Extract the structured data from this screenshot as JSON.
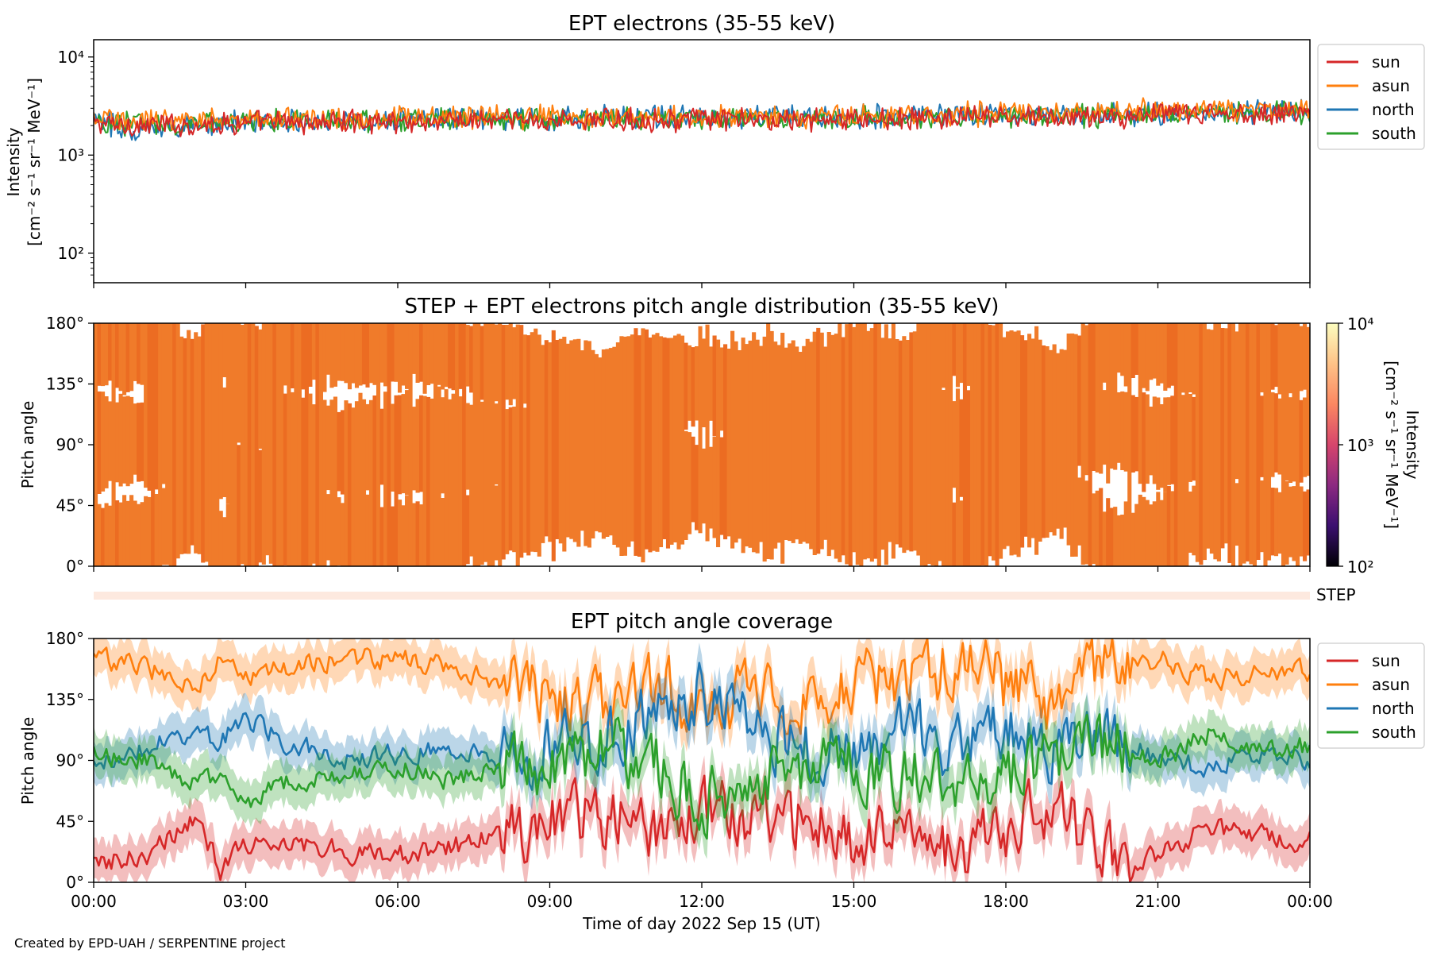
{
  "credit": "Created by EPD-UAH / SERPENTINE project",
  "chart_data": [
    {
      "type": "line",
      "title": "EPT electrons (35-55 keV)",
      "ylabel_line1": "Intensity",
      "ylabel_line2": "[cm⁻² s⁻¹ sr⁻¹ MeV⁻¹]",
      "yscale": "log",
      "ylim": [
        50,
        15000
      ],
      "yticks": [
        "10²",
        "10³",
        "10⁴"
      ],
      "yticks_values": [
        100,
        1000,
        10000
      ],
      "xlim_hours": [
        0,
        24
      ],
      "legend_placement": "outside-right-top",
      "series": [
        {
          "name": "sun",
          "color": "#d62728",
          "x_hours": [
            0,
            1,
            2,
            3,
            4,
            5,
            6,
            7,
            8,
            9,
            10,
            11,
            12,
            13,
            14,
            15,
            16,
            17,
            18,
            19,
            20,
            21,
            22,
            23,
            24
          ],
          "values": [
            2100,
            2000,
            2050,
            2150,
            2150,
            2200,
            2200,
            2250,
            2250,
            2250,
            2250,
            2300,
            2300,
            2250,
            2300,
            2300,
            2350,
            2350,
            2400,
            2400,
            2450,
            2550,
            2600,
            2650,
            2700
          ]
        },
        {
          "name": "asun",
          "color": "#ff7f0e",
          "x_hours": [
            0,
            1,
            2,
            3,
            4,
            5,
            6,
            7,
            8,
            9,
            10,
            11,
            12,
            13,
            14,
            15,
            16,
            17,
            18,
            19,
            20,
            21,
            22,
            23,
            24
          ],
          "values": [
            2300,
            2250,
            2300,
            2350,
            2350,
            2400,
            2400,
            2450,
            2450,
            2450,
            2450,
            2500,
            2500,
            2500,
            2500,
            2550,
            2550,
            2600,
            2650,
            2700,
            2750,
            2800,
            2900,
            2950,
            3000
          ]
        },
        {
          "name": "north",
          "color": "#1f77b4",
          "x_hours": [
            0,
            1,
            2,
            3,
            4,
            5,
            6,
            7,
            8,
            9,
            10,
            11,
            12,
            13,
            14,
            15,
            16,
            17,
            18,
            19,
            20,
            21,
            22,
            23,
            24
          ],
          "values": [
            2200,
            1800,
            2100,
            2200,
            2250,
            2250,
            2300,
            2300,
            2350,
            2350,
            2400,
            2400,
            2400,
            2400,
            2450,
            2500,
            2500,
            2500,
            2550,
            2550,
            2600,
            2650,
            2700,
            2750,
            2800
          ]
        },
        {
          "name": "south",
          "color": "#2ca02c",
          "x_hours": [
            0,
            1,
            2,
            3,
            4,
            5,
            6,
            7,
            8,
            9,
            10,
            11,
            12,
            13,
            14,
            15,
            16,
            17,
            18,
            19,
            20,
            21,
            22,
            23,
            24
          ],
          "values": [
            2150,
            2050,
            2100,
            2200,
            2200,
            2250,
            2250,
            2300,
            2300,
            2300,
            2350,
            2350,
            2350,
            2350,
            2400,
            2400,
            2450,
            2450,
            2500,
            2500,
            2550,
            2600,
            2650,
            2700,
            2750
          ]
        }
      ]
    },
    {
      "type": "heatmap",
      "title": "STEP + EPT electrons pitch angle distribution (35-55 keV)",
      "ylabel": "Pitch angle",
      "ylim": [
        0,
        180
      ],
      "yticks": [
        "0°",
        "45°",
        "90°",
        "135°",
        "180°"
      ],
      "yticks_values": [
        0,
        45,
        90,
        135,
        180
      ],
      "xlim_hours": [
        0,
        24
      ],
      "colorbar": {
        "scale": "log",
        "range": [
          100,
          10000
        ],
        "ticks": [
          "10²",
          "10³",
          "10⁴"
        ],
        "label_line1": "Intensity",
        "label_line2": "[cm⁻² s⁻¹ sr⁻¹ MeV⁻¹]",
        "colormap": "plasma-like",
        "stops": [
          "#000004",
          "#3b0f70",
          "#8c2981",
          "#d6456c",
          "#fb8761",
          "#fec287",
          "#fcfdbf"
        ]
      },
      "fill_color": "#f07b2a",
      "dense_color": "#ec6c22"
    },
    {
      "type": "bar",
      "label": "STEP",
      "color": "#fde9df"
    },
    {
      "type": "line",
      "title": "EPT pitch angle coverage",
      "ylabel": "Pitch angle",
      "xlabel": "Time of day 2022 Sep 15 (UT)",
      "ylim": [
        0,
        180
      ],
      "yticks": [
        "0°",
        "45°",
        "90°",
        "135°",
        "180°"
      ],
      "yticks_values": [
        0,
        45,
        90,
        135,
        180
      ],
      "xlim_hours": [
        0,
        24
      ],
      "xticks": [
        "00:00",
        "03:00",
        "06:00",
        "09:00",
        "12:00",
        "15:00",
        "18:00",
        "21:00",
        "00:00"
      ],
      "xticks_hours": [
        0,
        3,
        6,
        9,
        12,
        15,
        18,
        21,
        24
      ],
      "band_halfwidth_deg": 15,
      "legend_placement": "outside-right-top",
      "series": [
        {
          "name": "sun",
          "color": "#d62728",
          "x_hours": [
            0,
            1,
            2,
            2.5,
            3,
            4,
            5,
            6,
            7,
            8,
            9,
            10,
            11,
            12,
            13,
            14,
            15,
            16,
            17,
            18,
            19,
            20,
            21,
            22,
            23,
            24
          ],
          "values": [
            15,
            20,
            45,
            10,
            28,
            30,
            22,
            20,
            25,
            35,
            45,
            50,
            40,
            60,
            40,
            45,
            35,
            45,
            20,
            40,
            55,
            15,
            20,
            40,
            35,
            30
          ]
        },
        {
          "name": "asun",
          "color": "#ff7f0e",
          "x_hours": [
            0,
            1,
            2,
            2.5,
            3,
            4,
            5,
            6,
            7,
            8,
            9,
            10,
            11,
            12,
            13,
            14,
            15,
            16,
            17,
            18,
            19,
            20,
            21,
            22,
            23,
            24
          ],
          "values": [
            165,
            160,
            140,
            170,
            150,
            160,
            165,
            165,
            160,
            150,
            140,
            130,
            145,
            130,
            140,
            135,
            150,
            140,
            165,
            145,
            130,
            165,
            165,
            150,
            155,
            155
          ]
        },
        {
          "name": "north",
          "color": "#1f77b4",
          "x_hours": [
            0,
            1,
            2,
            2.5,
            3,
            4,
            5,
            6,
            7,
            8,
            9,
            10,
            11,
            12,
            13,
            14,
            15,
            16,
            17,
            18,
            19,
            20,
            21,
            22,
            23,
            24
          ],
          "values": [
            85,
            100,
            110,
            105,
            120,
            100,
            90,
            95,
            100,
            90,
            95,
            110,
            120,
            140,
            110,
            100,
            95,
            110,
            100,
            115,
            90,
            110,
            90,
            85,
            95,
            90
          ]
        },
        {
          "name": "south",
          "color": "#2ca02c",
          "x_hours": [
            0,
            1,
            2,
            2.5,
            3,
            4,
            5,
            6,
            7,
            8,
            9,
            10,
            11,
            12,
            13,
            14,
            15,
            16,
            17,
            18,
            19,
            20,
            21,
            22,
            23,
            24
          ],
          "values": [
            95,
            90,
            75,
            80,
            60,
            75,
            80,
            85,
            75,
            85,
            85,
            100,
            90,
            60,
            80,
            85,
            90,
            75,
            80,
            75,
            95,
            100,
            90,
            110,
            100,
            100
          ]
        }
      ]
    }
  ]
}
